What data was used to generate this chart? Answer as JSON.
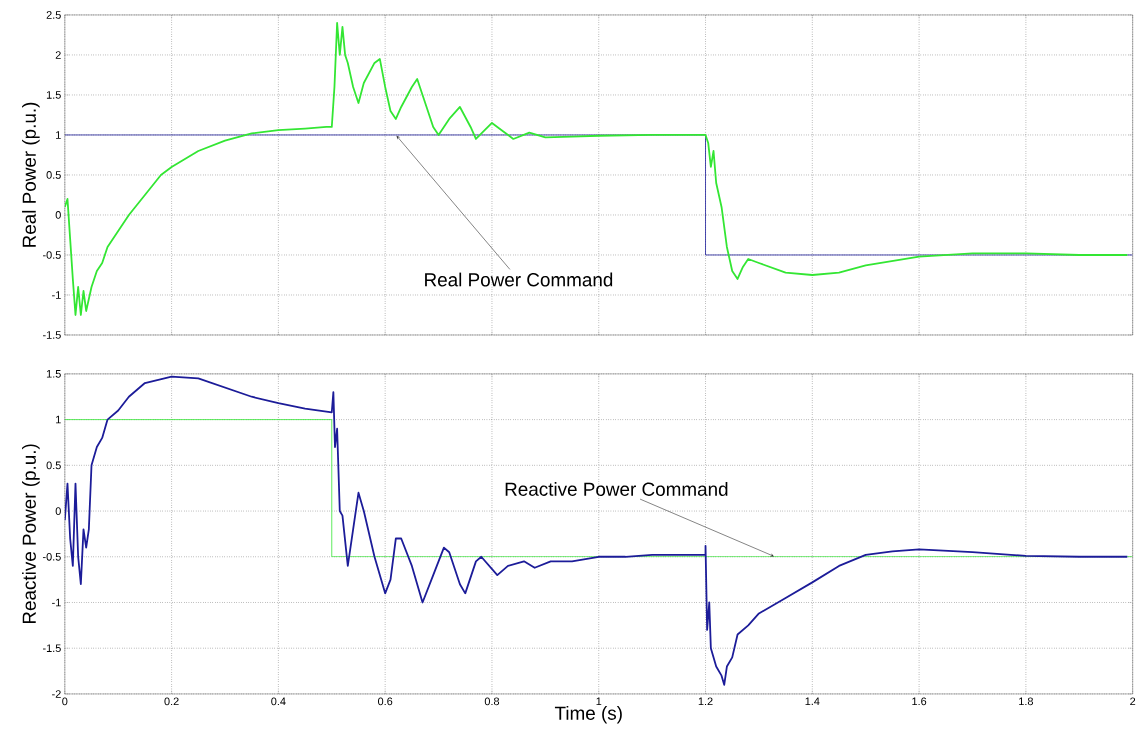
{
  "chart_data": [
    {
      "type": "line",
      "ylabel": "Real Power (p.u.)",
      "xlim": [
        0,
        2
      ],
      "ylim": [
        -1.5,
        2.5
      ],
      "xticks": [
        0,
        0.2,
        0.4,
        0.6,
        0.8,
        1,
        1.2,
        1.4,
        1.6,
        1.8,
        2
      ],
      "yticks": [
        -1.5,
        -1,
        -0.5,
        0,
        0.5,
        1,
        1.5,
        2,
        2.5
      ],
      "grid": true,
      "tick_labels": "y",
      "annotations": [
        {
          "text": "Real Power Command",
          "x": 0.62,
          "y": 1
        }
      ],
      "series": [
        {
          "color": "#1c1c99",
          "x": [
            0,
            1.2,
            1.2,
            2
          ],
          "values": [
            1,
            1,
            -0.5,
            -0.5
          ]
        },
        {
          "color": "#33e633",
          "x": [
            0,
            0.005,
            0.01,
            0.015,
            0.02,
            0.025,
            0.03,
            0.035,
            0.04,
            0.05,
            0.06,
            0.07,
            0.08,
            0.1,
            0.12,
            0.15,
            0.18,
            0.2,
            0.25,
            0.3,
            0.35,
            0.4,
            0.45,
            0.49,
            0.5,
            0.505,
            0.51,
            0.515,
            0.52,
            0.525,
            0.53,
            0.54,
            0.55,
            0.56,
            0.58,
            0.59,
            0.6,
            0.61,
            0.62,
            0.63,
            0.65,
            0.66,
            0.67,
            0.69,
            0.7,
            0.72,
            0.74,
            0.76,
            0.77,
            0.8,
            0.82,
            0.84,
            0.87,
            0.9,
            0.95,
            1.0,
            1.1,
            1.2,
            1.205,
            1.21,
            1.215,
            1.22,
            1.23,
            1.24,
            1.25,
            1.26,
            1.27,
            1.28,
            1.3,
            1.35,
            1.4,
            1.45,
            1.5,
            1.6,
            1.7,
            1.8,
            1.9,
            1.99
          ],
          "values": [
            0.1,
            0.2,
            -0.3,
            -0.8,
            -1.25,
            -0.9,
            -1.25,
            -0.95,
            -1.2,
            -0.9,
            -0.7,
            -0.6,
            -0.4,
            -0.2,
            0,
            0.25,
            0.5,
            0.6,
            0.8,
            0.93,
            1.02,
            1.06,
            1.08,
            1.1,
            1.1,
            1.6,
            2.4,
            2.0,
            2.35,
            2.0,
            1.9,
            1.6,
            1.4,
            1.65,
            1.9,
            1.95,
            1.6,
            1.3,
            1.2,
            1.35,
            1.6,
            1.7,
            1.5,
            1.1,
            1.0,
            1.2,
            1.35,
            1.1,
            0.95,
            1.15,
            1.05,
            0.95,
            1.03,
            0.97,
            0.98,
            0.99,
            1.0,
            1.0,
            0.9,
            0.6,
            0.8,
            0.4,
            0.1,
            -0.4,
            -0.7,
            -0.8,
            -0.65,
            -0.55,
            -0.6,
            -0.72,
            -0.75,
            -0.72,
            -0.63,
            -0.52,
            -0.48,
            -0.48,
            -0.5,
            -0.5
          ]
        }
      ]
    },
    {
      "type": "line",
      "xlabel": "Time (s)",
      "ylabel": "Reactive Power (p.u.)",
      "xlim": [
        0,
        2
      ],
      "ylim": [
        -2,
        1.5
      ],
      "xticks": [
        0,
        0.2,
        0.4,
        0.6,
        0.8,
        1,
        1.2,
        1.4,
        1.6,
        1.8,
        2
      ],
      "yticks": [
        -2,
        -1.5,
        -1,
        -0.5,
        0,
        0.5,
        1,
        1.5
      ],
      "grid": true,
      "annotations": [
        {
          "text": "Reactive Power Command",
          "x": 1.33,
          "y": -0.5
        }
      ],
      "series": [
        {
          "color": "#33e633",
          "x": [
            0,
            0.5,
            0.5,
            2
          ],
          "values": [
            1,
            1,
            -0.5,
            -0.5
          ]
        },
        {
          "color": "#1c1c99",
          "x": [
            0,
            0.005,
            0.01,
            0.015,
            0.02,
            0.025,
            0.03,
            0.035,
            0.04,
            0.045,
            0.05,
            0.06,
            0.07,
            0.08,
            0.1,
            0.12,
            0.15,
            0.2,
            0.25,
            0.3,
            0.35,
            0.4,
            0.45,
            0.5,
            0.503,
            0.506,
            0.51,
            0.515,
            0.52,
            0.53,
            0.54,
            0.55,
            0.56,
            0.58,
            0.6,
            0.61,
            0.62,
            0.63,
            0.65,
            0.67,
            0.69,
            0.71,
            0.72,
            0.74,
            0.75,
            0.77,
            0.78,
            0.81,
            0.83,
            0.86,
            0.88,
            0.91,
            0.95,
            1.0,
            1.05,
            1.1,
            1.2,
            1.2,
            1.203,
            1.207,
            1.21,
            1.22,
            1.23,
            1.235,
            1.24,
            1.25,
            1.26,
            1.28,
            1.3,
            1.35,
            1.4,
            1.45,
            1.5,
            1.55,
            1.6,
            1.7,
            1.8,
            1.9,
            1.99
          ],
          "values": [
            -0.1,
            0.3,
            -0.3,
            -0.6,
            0.3,
            -0.5,
            -0.8,
            -0.2,
            -0.4,
            -0.2,
            0.5,
            0.7,
            0.8,
            1.0,
            1.1,
            1.25,
            1.4,
            1.47,
            1.45,
            1.35,
            1.25,
            1.18,
            1.12,
            1.08,
            1.3,
            0.7,
            0.9,
            0.0,
            -0.05,
            -0.6,
            -0.2,
            0.2,
            0.0,
            -0.5,
            -0.9,
            -0.75,
            -0.3,
            -0.3,
            -0.6,
            -1.0,
            -0.7,
            -0.4,
            -0.45,
            -0.8,
            -0.9,
            -0.55,
            -0.5,
            -0.7,
            -0.6,
            -0.55,
            -0.62,
            -0.55,
            -0.55,
            -0.5,
            -0.5,
            -0.48,
            -0.48,
            -0.38,
            -1.3,
            -1.0,
            -1.5,
            -1.7,
            -1.8,
            -1.9,
            -1.7,
            -1.6,
            -1.35,
            -1.25,
            -1.12,
            -0.95,
            -0.78,
            -0.6,
            -0.48,
            -0.44,
            -0.42,
            -0.45,
            -0.49,
            -0.5,
            -0.5
          ]
        }
      ]
    }
  ]
}
